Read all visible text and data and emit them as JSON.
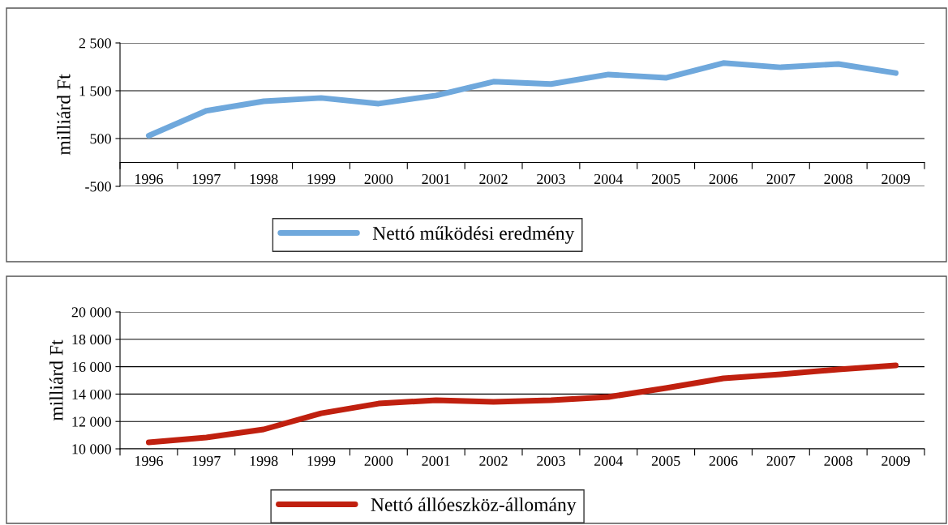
{
  "chart_data": [
    {
      "type": "line",
      "ylabel": "milliárd Ft",
      "categories": [
        "1996",
        "1997",
        "1998",
        "1999",
        "2000",
        "2001",
        "2002",
        "2003",
        "2004",
        "2005",
        "2006",
        "2007",
        "2008",
        "2009"
      ],
      "series": [
        {
          "name": "Nettó működési eredmény",
          "color": "#6fa8dc",
          "values": [
            560,
            1080,
            1280,
            1350,
            1230,
            1400,
            1690,
            1640,
            1840,
            1770,
            2080,
            1990,
            2060,
            1870
          ]
        }
      ],
      "ylim": [
        -500,
        2500
      ],
      "yticks": [
        {
          "value": -500,
          "label": "-500"
        },
        500,
        {
          "value": 1500,
          "label": "1 500"
        },
        {
          "value": 2500,
          "label": "2 500"
        }
      ],
      "grid": "y",
      "legend": "bottom"
    },
    {
      "type": "line",
      "ylabel": "milliárd Ft",
      "categories": [
        "1996",
        "1997",
        "1998",
        "1999",
        "2000",
        "2001",
        "2002",
        "2003",
        "2004",
        "2005",
        "2006",
        "2007",
        "2008",
        "2009"
      ],
      "series": [
        {
          "name": "Nettó állóeszköz-állomány",
          "color": "#c0200f",
          "values": [
            10470,
            10830,
            11420,
            12600,
            13310,
            13550,
            13430,
            13550,
            13790,
            14440,
            15150,
            15440,
            15800,
            16090
          ]
        }
      ],
      "ylim": [
        10000,
        20000
      ],
      "yticks": [
        {
          "value": 10000,
          "label": "10 000"
        },
        {
          "value": 12000,
          "label": "12 000"
        },
        {
          "value": 14000,
          "label": "14 000"
        },
        {
          "value": 16000,
          "label": "16 000"
        },
        {
          "value": 18000,
          "label": "18 000"
        },
        {
          "value": 20000,
          "label": "20 000"
        }
      ],
      "grid": "y",
      "legend": "bottom"
    }
  ]
}
